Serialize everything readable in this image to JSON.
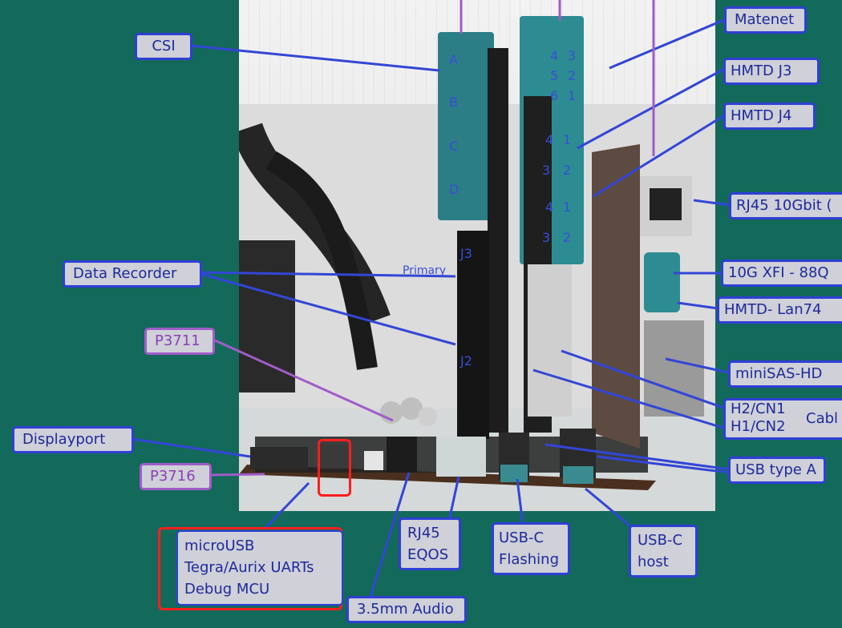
{
  "labels": {
    "csi": "CSI",
    "matenet": "Matenet",
    "hmtd_j3": "HMTD J3",
    "hmtd_j4": "HMTD J4",
    "rj45_10gbit": "RJ45 10Gbit (",
    "xfi": "10G XFI - 88Q",
    "hmtd_lan": "HMTD- Lan74",
    "minisas": "miniSAS-HD",
    "h2cn1": "H2/CN1",
    "h1cn2": "H1/CN2",
    "cable": "Cabl",
    "usb_type_a": "USB type A",
    "data_recorder": "Data Recorder",
    "p3711": "P3711",
    "displayport": "Displayport",
    "p3716": "P3716",
    "microusb_lines": [
      "microUSB",
      "Tegra/Aurix UARTs",
      "Debug MCU"
    ],
    "audio": "3.5mm Audio",
    "rj45_eqos_lines": [
      "RJ45",
      "EQOS"
    ],
    "usbc_flashing_lines": [
      "USB-C",
      "Flashing"
    ],
    "usbc_host_lines": [
      "USB-C",
      "host"
    ]
  },
  "connector_marks": {
    "csi_letters": [
      "A",
      "B",
      "C",
      "D"
    ],
    "matenet_pins": [
      "4",
      "3",
      "5",
      "2",
      "6",
      "1"
    ],
    "hmtd_pins": [
      "4",
      "1",
      "3",
      "2"
    ],
    "j3": "J3",
    "j2": "J2",
    "primary": "Primary"
  },
  "colors": {
    "background": "#13695a",
    "callout_fill": "#cfd0d8",
    "callout_border": "#2f3fd6",
    "callout_text": "#1e2a9a",
    "purple_border": "#a05cc8",
    "leader_line": "#3346d6",
    "purple_line": "#a05cc8",
    "highlight_red": "#ff1e1e"
  }
}
